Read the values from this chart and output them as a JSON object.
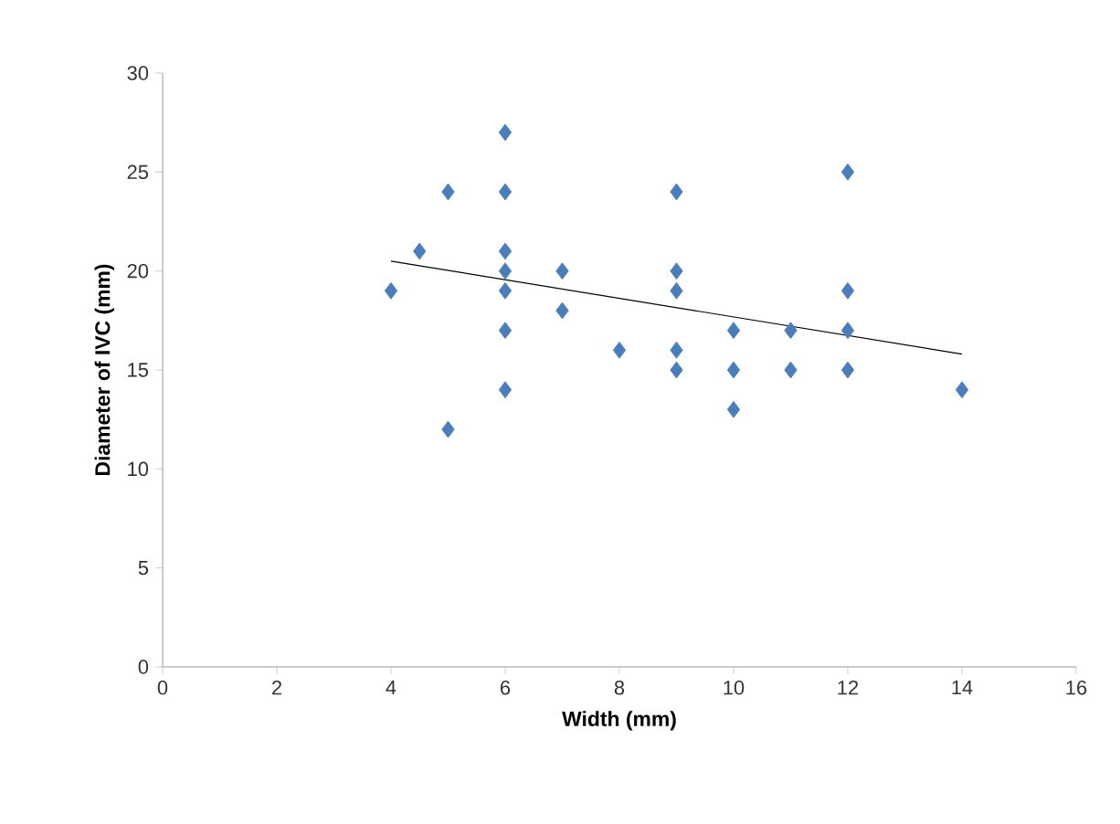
{
  "chart_data": {
    "type": "scatter",
    "xlabel": "Width (mm)",
    "ylabel": "Diameter of IVC (mm)",
    "marker": "diamond",
    "xlim": [
      0,
      16
    ],
    "ylim": [
      0,
      30
    ],
    "xticks": [
      0,
      2,
      4,
      6,
      8,
      10,
      12,
      14,
      16
    ],
    "yticks": [
      0,
      5,
      10,
      15,
      20,
      25,
      30
    ],
    "series": [
      {
        "color": "#4a7ebb",
        "x": [
          4,
          4.5,
          5,
          5,
          6,
          6,
          6,
          6,
          6,
          6,
          6,
          7,
          7,
          8,
          9,
          9,
          9,
          9,
          9,
          10,
          10,
          10,
          11,
          11,
          12,
          12,
          12,
          12,
          14
        ],
        "values": [
          19,
          21,
          24,
          12,
          27,
          24,
          21,
          20,
          19,
          17,
          14,
          20,
          18,
          16,
          24,
          20,
          19,
          16,
          15,
          17,
          15,
          13,
          17,
          15,
          25,
          19,
          17,
          15,
          14
        ]
      },
      {
        "type": "line",
        "marker": "none",
        "color": "#000000",
        "x": [
          4,
          14
        ],
        "values": [
          20.5,
          15.8
        ]
      }
    ]
  }
}
